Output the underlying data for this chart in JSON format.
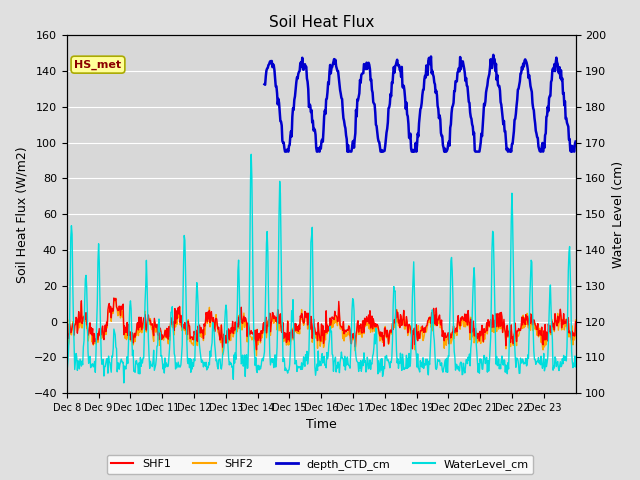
{
  "title": "Soil Heat Flux",
  "ylabel_left": "Soil Heat Flux (W/m2)",
  "ylabel_right": "Water Level (cm)",
  "xlabel": "Time",
  "ylim_left": [
    -40,
    160
  ],
  "ylim_right": [
    100,
    200
  ],
  "fig_bg_color": "#e0e0e0",
  "plot_bg_color": "#d8d8d8",
  "xtick_labels": [
    "Dec 8",
    "Dec 9",
    "Dec 10",
    "Dec 11",
    "Dec 12",
    "Dec 13",
    "Dec 14",
    "Dec 15",
    "Dec 16",
    "Dec 17",
    "Dec 18",
    "Dec 19",
    "Dec 20",
    "Dec 21",
    "Dec 22",
    "Dec 23"
  ],
  "annotation_text": "HS_met",
  "annotation_color": "#8b0000",
  "annotation_bg": "#ffff99",
  "annotation_edge": "#aaaa00",
  "legend_entries": [
    "SHF1",
    "SHF2",
    "depth_CTD_cm",
    "WaterLevel_cm"
  ],
  "legend_colors": [
    "#ff0000",
    "#ffa500",
    "#0000cc",
    "#00dddd"
  ],
  "grid_color": "#ffffff",
  "num_days": 16
}
